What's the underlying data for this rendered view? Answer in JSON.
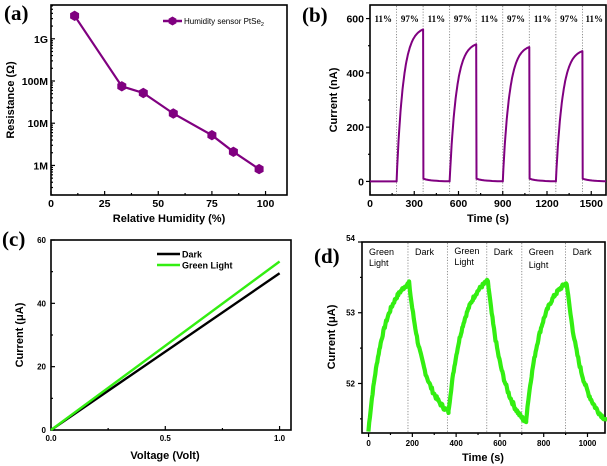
{
  "figure": {
    "panels": [
      "(a)",
      "(b)",
      "(c)",
      "(d)"
    ]
  },
  "chart_data": [
    {
      "id": "a",
      "type": "line",
      "panel_label": "(a)",
      "title": "",
      "xlabel": "Relative Humidity (%)",
      "ylabel": "Resistance (Ω)",
      "yscale": "log",
      "xlim": [
        0,
        110
      ],
      "ylim_log10": [
        5.3,
        9.8
      ],
      "xticks": [
        0,
        25,
        50,
        75,
        100
      ],
      "xtick_labels": [
        "0",
        "25",
        "50",
        "75",
        "100"
      ],
      "yticks": [
        1000000,
        10000000,
        100000000,
        1000000000
      ],
      "ytick_labels": [
        "1M",
        "10M",
        "100M",
        "1G"
      ],
      "legend": {
        "position": "top-right",
        "label_main": "Humidity sensor PtSe",
        "label_sub": "2"
      },
      "series": [
        {
          "name": "Humidity sensor PtSe2",
          "color": "#800080",
          "marker": "hexagon",
          "x": [
            11,
            33,
            43,
            57,
            75,
            85,
            97
          ],
          "y": [
            3500000000,
            75000000,
            52000000,
            17000000,
            5200000,
            2100000,
            820000
          ]
        }
      ]
    },
    {
      "id": "b",
      "type": "line",
      "panel_label": "(b)",
      "title": "",
      "xlabel": "Time (s)",
      "ylabel": "Current (nA)",
      "xlim": [
        0,
        1600
      ],
      "ylim": [
        -50,
        650
      ],
      "xticks": [
        0,
        300,
        600,
        900,
        1200,
        1500
      ],
      "xtick_labels": [
        "0",
        "300",
        "600",
        "900",
        "1200",
        "1500"
      ],
      "yticks": [
        0,
        200,
        400,
        600
      ],
      "ytick_labels": [
        "0",
        "200",
        "400",
        "600"
      ],
      "region_boundaries": [
        180,
        360,
        540,
        720,
        900,
        1080,
        1260,
        1440
      ],
      "region_labels": [
        "11%",
        "97%",
        "11%",
        "97%",
        "11%",
        "97%",
        "11%",
        "97%",
        "11%"
      ],
      "series": [
        {
          "name": "Current",
          "color": "#800080",
          "cycles": [
            {
              "on": 180,
              "off": 360,
              "peak": 560
            },
            {
              "on": 540,
              "off": 720,
              "peak": 505
            },
            {
              "on": 900,
              "off": 1080,
              "peak": 495
            },
            {
              "on": 1260,
              "off": 1440,
              "peak": 480
            }
          ],
          "baseline": 0
        }
      ]
    },
    {
      "id": "c",
      "type": "line",
      "panel_label": "(c)",
      "title": "",
      "xlabel": "Voltage (Volt)",
      "ylabel": "Current (μA)",
      "xlim": [
        0,
        1.05
      ],
      "ylim": [
        0,
        60
      ],
      "xticks": [
        0,
        0.5,
        1.0
      ],
      "xtick_labels": [
        "0.0",
        "0.5",
        "1.0"
      ],
      "yticks": [
        0,
        20,
        40,
        60
      ],
      "ytick_labels": [
        "0",
        "20",
        "40",
        "60"
      ],
      "legend": {
        "position": "top-right"
      },
      "series": [
        {
          "name": "Dark",
          "color": "#000000",
          "x": [
            0,
            1.0
          ],
          "y": [
            0,
            49.5
          ]
        },
        {
          "name": "Green Light",
          "color": "#33ee11",
          "x": [
            0,
            1.0
          ],
          "y": [
            0,
            53.2
          ]
        }
      ]
    },
    {
      "id": "d",
      "type": "line",
      "panel_label": "(d)",
      "title": "",
      "xlabel": "Time (s)",
      "ylabel": "Current (μA)",
      "xlim": [
        -30,
        1080
      ],
      "ylim": [
        51.3,
        54
      ],
      "xticks": [
        0,
        200,
        400,
        600,
        800,
        1000
      ],
      "xtick_labels": [
        "0",
        "200",
        "400",
        "600",
        "800",
        "1000"
      ],
      "yticks": [
        52,
        53,
        54
      ],
      "ytick_labels": [
        "52",
        "53",
        "54"
      ],
      "region_boundaries": [
        180,
        360,
        540,
        700,
        900
      ],
      "region_labels": [
        {
          "line1": "Green",
          "line2": "Light"
        },
        {
          "line1": "Dark",
          "line2": ""
        },
        {
          "line1": "Green",
          "line2": "Light"
        },
        {
          "line1": "Dark",
          "line2": ""
        },
        {
          "line1": "Green",
          "line2": "Light"
        },
        {
          "line1": "Dark",
          "line2": ""
        }
      ],
      "series": [
        {
          "name": "Current",
          "color": "#33ee11",
          "cycles": [
            {
              "on": 0,
              "off": 185,
              "start": 51.35,
              "peak": 53.42,
              "end": 51.6
            },
            {
              "on": 365,
              "off": 545,
              "start": 51.6,
              "peak": 53.45,
              "end": 51.45
            },
            {
              "on": 720,
              "off": 905,
              "start": 51.5,
              "peak": 53.42,
              "end": 51.5
            }
          ],
          "tmax": 1080
        }
      ]
    }
  ]
}
